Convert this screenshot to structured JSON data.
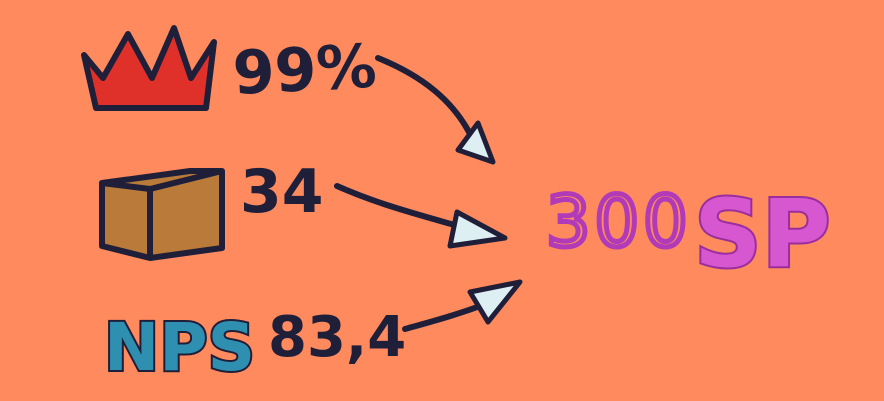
{
  "colors": {
    "background": "#FF8A5E",
    "ink": "#1F1F3A",
    "crown": "#E0302A",
    "box": "#B97A3A",
    "nps": "#2E8FB0",
    "result_numeral": "#B03AB8",
    "result_letters": "#D657CF",
    "arrow_head": "#DDEFF2"
  },
  "icons": {
    "crown": "crown-icon",
    "box": "box-icon"
  },
  "items": [
    {
      "label": "99%"
    },
    {
      "label": "34"
    },
    {
      "prefix": "NPS",
      "label": "83,4"
    }
  ],
  "result": {
    "number": "300",
    "unit": "SP"
  }
}
